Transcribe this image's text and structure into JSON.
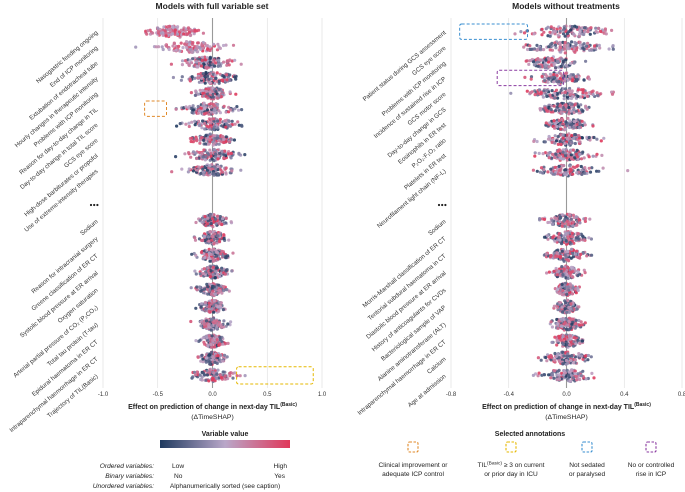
{
  "colors": {
    "low": "#1f3a5f",
    "mid": "#b9a7c9",
    "high": "#e0385a",
    "zero_line": "#9a9a9a",
    "grid": "#dcdcdc",
    "ann_orange": "#e08a2a",
    "ann_yellow": "#e6b800",
    "ann_blue": "#3a8fd0",
    "ann_purple": "#8a3aa0"
  },
  "chart_data": [
    {
      "type": "scatter",
      "subtype": "beeswarm",
      "title": "Models with full variable set",
      "xlabel_main": "Effect on prediction of change in next-day TIL",
      "xlabel_sup": "(Basic)",
      "xlabel_sub": "(ΔTimeSHAP)",
      "xlim": [
        -1.0,
        1.0
      ],
      "xticks": [
        -1.0,
        -0.5,
        0.0,
        0.5,
        1.0
      ],
      "xtick_labels": [
        "-1.0",
        "-0.5",
        "0.0",
        "0.5",
        "1.0"
      ],
      "top_variables": [
        {
          "name": "Nasogastric feeding ongoing",
          "center": -0.35,
          "spread": 0.28
        },
        {
          "name": "End of ICP monitoring",
          "center": -0.2,
          "spread": 0.32
        },
        {
          "name": "Extubation of endotracheal tube",
          "center": -0.05,
          "spread": 0.25
        },
        {
          "name": "Hourly changes in therapeutic intensity",
          "center": 0.0,
          "spread": 0.3
        },
        {
          "name": "Problems with ICP monitoring",
          "center": 0.0,
          "spread": 0.15
        },
        {
          "name": "Reason for day-to-day change in TIL",
          "center": -0.05,
          "spread": 0.3
        },
        {
          "name": "Day-to-day change in total TIL score",
          "center": 0.0,
          "spread": 0.25
        },
        {
          "name": "GCS eye score",
          "center": 0.0,
          "spread": 0.2
        },
        {
          "name": "High-dose barbiturates or propofol",
          "center": 0.0,
          "spread": 0.25
        },
        {
          "name": "Use of extreme-intensity therapies",
          "center": 0.0,
          "spread": 0.22
        }
      ],
      "bottom_variables": [
        {
          "name": "Sodium",
          "center": 0.0,
          "spread": 0.14
        },
        {
          "name": "Reason for intracranial surgery",
          "center": 0.0,
          "spread": 0.14
        },
        {
          "name": "Greene classification of ER CT",
          "center": 0.0,
          "spread": 0.14
        },
        {
          "name": "Systolic blood pressure at ER arrival",
          "center": 0.0,
          "spread": 0.14
        },
        {
          "name": "Oxygen saturation",
          "center": 0.0,
          "spread": 0.13
        },
        {
          "name": "Arterial partial pressure of CO₂ (P₂CO₂)",
          "center": 0.0,
          "spread": 0.13
        },
        {
          "name": "Total tau protein (T-tau)",
          "center": 0.0,
          "spread": 0.13
        },
        {
          "name": "Epidural haematoma in ER CT",
          "center": 0.0,
          "spread": 0.12
        },
        {
          "name": "Intraparenchymal haemorrhage in ER CT",
          "center": 0.0,
          "spread": 0.12
        },
        {
          "name": "Trajectory of TIL(Basic)",
          "center": 0.0,
          "spread": 0.2
        }
      ]
    },
    {
      "type": "scatter",
      "subtype": "beeswarm",
      "title": "Models without treatments",
      "xlabel_main": "Effect on prediction of change in next-day TIL",
      "xlabel_sup": "(Basic)",
      "xlabel_sub": "(ΔTimeSHAP)",
      "xlim": [
        -0.8,
        0.8
      ],
      "xticks": [
        -0.8,
        -0.4,
        0.0,
        0.4,
        0.8
      ],
      "xtick_labels": [
        "-0.8",
        "-0.4",
        "0.0",
        "0.4",
        "0.8"
      ],
      "top_variables": [
        {
          "name": "Patient status during GCS assessment",
          "center": 0.0,
          "spread": 0.35
        },
        {
          "name": "GCS eye score",
          "center": 0.0,
          "spread": 0.3
        },
        {
          "name": "Problems with ICP monitoring",
          "center": -0.1,
          "spread": 0.2
        },
        {
          "name": "Incidence of sustained rise in ICP",
          "center": -0.05,
          "spread": 0.18
        },
        {
          "name": "GCS motor score",
          "center": 0.0,
          "spread": 0.3
        },
        {
          "name": "Day-to-day change in GCS",
          "center": 0.0,
          "spread": 0.2
        },
        {
          "name": "Eosinophils in ER test",
          "center": 0.0,
          "spread": 0.18
        },
        {
          "name": "P₂O₂:F₁O₂ ratio",
          "center": 0.0,
          "spread": 0.18
        },
        {
          "name": "Platelets in ER test",
          "center": 0.0,
          "spread": 0.2
        },
        {
          "name": "Neurofilament light chain (NF-L)",
          "center": 0.0,
          "spread": 0.22
        }
      ],
      "bottom_variables": [
        {
          "name": "Sodium",
          "center": 0.0,
          "spread": 0.15
        },
        {
          "name": "Morris-Marshall classification of ER CT",
          "center": 0.0,
          "spread": 0.15
        },
        {
          "name": "Tentorial subdural haematoma in CT",
          "center": 0.0,
          "spread": 0.15
        },
        {
          "name": "Diastolic blood pressure at ER arrival",
          "center": 0.0,
          "spread": 0.12
        },
        {
          "name": "History of anticoagulants for CVDs",
          "center": 0.0,
          "spread": 0.08
        },
        {
          "name": "Bacteriological sample of VAP",
          "center": 0.0,
          "spread": 0.08
        },
        {
          "name": "Alanine aminotransferase (ALT)",
          "center": 0.0,
          "spread": 0.12
        },
        {
          "name": "Intraparenchymal haemorrhage in ER CT",
          "center": 0.0,
          "spread": 0.12
        },
        {
          "name": "Calcium",
          "center": 0.0,
          "spread": 0.18
        },
        {
          "name": "Age at admission",
          "center": 0.0,
          "spread": 0.2
        }
      ]
    }
  ],
  "legend": {
    "variable_value_title": "Variable value",
    "ordered_label": "Ordered variables:",
    "binary_label": "Binary variables:",
    "unordered_label": "Unordered variables:",
    "low": "Low",
    "high": "High",
    "no": "No",
    "yes": "Yes",
    "unordered_desc": "Alphanumerically sorted (see caption)",
    "annotations_title": "Selected annotations",
    "ann1": [
      "Clinical improvement or",
      "adequate ICP control"
    ],
    "ann2_pre": "TIL",
    "ann2_sup": "(Basic)",
    "ann2_post": " ≥ 3 on current",
    "ann2_line2": "or prior day in ICU",
    "ann3": [
      "Not sedated",
      "or paralysed"
    ],
    "ann4": [
      "No or controlled",
      "rise in ICP"
    ]
  }
}
